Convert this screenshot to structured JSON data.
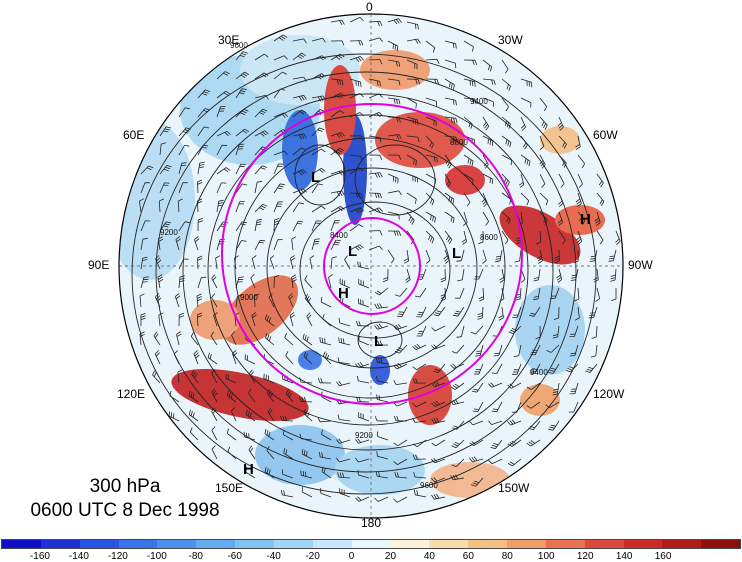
{
  "map": {
    "level_label": "300 hPa",
    "time_label": "0600 UTC 8 Dec 1998",
    "longitude_labels": [
      "0",
      "30W",
      "60W",
      "90W",
      "120W",
      "150W",
      "180",
      "150E",
      "120E",
      "90E",
      "60E",
      "30E"
    ],
    "pressure_centers": [
      "L",
      "L",
      "L",
      "H",
      "L",
      "H",
      "H"
    ],
    "contour_labels": [
      "9600",
      "9400",
      "9200",
      "9000",
      "8800",
      "8600",
      "8400"
    ],
    "ring_color": "#e000e0"
  },
  "colorbar": {
    "tick_labels": [
      "-160",
      "-140",
      "-120",
      "-100",
      "-80",
      "-60",
      "-40",
      "-20",
      "0",
      "20",
      "40",
      "60",
      "80",
      "100",
      "120",
      "140",
      "160"
    ],
    "colors": [
      "#1010c8",
      "#2030d8",
      "#2a55e4",
      "#3775ea",
      "#4a92ee",
      "#62acf2",
      "#80c2f5",
      "#a2d6f7",
      "#c6e8fa",
      "#e8f6fd",
      "#fdf3dc",
      "#f8dcae",
      "#f4bf85",
      "#ef9f66",
      "#e87550",
      "#de4a3c",
      "#cc2a28",
      "#b01c1c",
      "#8c1010"
    ]
  }
}
